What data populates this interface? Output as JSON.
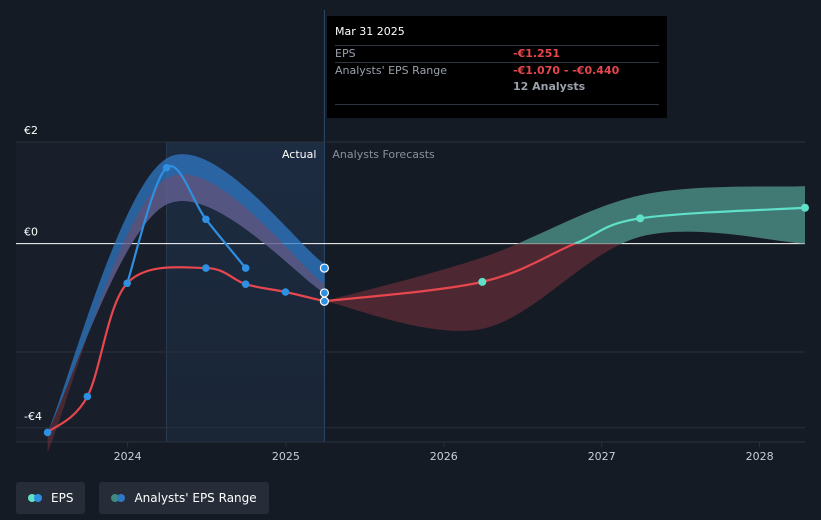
{
  "chart_data": {
    "type": "line",
    "currency_ticks": [
      {
        "label": "€2",
        "value": 2
      },
      {
        "label": "€0",
        "value": 0
      },
      {
        "label": "-€4",
        "value": -4
      }
    ],
    "ylim": [
      -4.2,
      2.1
    ],
    "x_ticks": [
      "2024",
      "2025",
      "2026",
      "2027",
      "2028"
    ],
    "xlim": [
      "2023-07-01",
      "2028-04-15"
    ],
    "region_labels": {
      "actual": "Actual",
      "forecast": "Analysts Forecasts"
    },
    "actual_end": "2025-03-31",
    "eps_actual": {
      "name": "EPS",
      "points": [
        {
          "x": "2023-06-30",
          "y": -4.1
        },
        {
          "x": "2023-09-30",
          "y": -3.32
        },
        {
          "x": "2023-12-31",
          "y": -0.86
        },
        {
          "x": "2024-06-30",
          "y": -0.53
        },
        {
          "x": "2024-09-30",
          "y": -0.88
        },
        {
          "x": "2024-12-31",
          "y": -1.05
        },
        {
          "x": "2025-03-31",
          "y": -1.251
        }
      ]
    },
    "eps_quarterly": {
      "points": [
        {
          "x": "2024-03-31",
          "y": 1.65
        },
        {
          "x": "2024-06-30",
          "y": 0.53
        },
        {
          "x": "2024-09-30",
          "y": -0.53
        },
        {
          "x": "2025-03-31",
          "y": -0.53
        },
        {
          "x": "2025-03-31",
          "y": -1.07
        }
      ]
    },
    "eps_forecast": {
      "points": [
        {
          "x": "2025-03-31",
          "y": -1.251
        },
        {
          "x": "2026-03-31",
          "y": -0.83
        },
        {
          "x": "2026-10-31",
          "y": 0.0
        },
        {
          "x": "2027-03-31",
          "y": 0.55
        },
        {
          "x": "2028-04-15",
          "y": 0.78
        }
      ]
    },
    "range_actual": {
      "name": "Analysts' EPS Range",
      "points": [
        {
          "x": "2023-06-30",
          "low": -4.1,
          "high": -4.1
        },
        {
          "x": "2024-03-31",
          "low": 0.85,
          "high": 1.85
        },
        {
          "x": "2025-03-31",
          "low": -1.07,
          "high": -0.44
        }
      ]
    },
    "range_forecast": {
      "points": [
        {
          "x": "2025-03-31",
          "low": -1.251,
          "high": -1.251
        },
        {
          "x": "2026-03-31",
          "low": -1.85,
          "high": -0.3
        },
        {
          "x": "2027-03-31",
          "low": 0.15,
          "high": 1.05
        },
        {
          "x": "2028-04-15",
          "low": 0.0,
          "high": 1.25
        }
      ]
    },
    "colors": {
      "eps_negative": "#e6474e",
      "eps_positive_forecast": "#5fe0c8",
      "eps_past_blue": "#2f8fe0",
      "range_blue": "#2f78c4",
      "range_red": "#a33a45",
      "range_green": "#3f8a80"
    }
  },
  "tooltip": {
    "date": "Mar 31 2025",
    "eps_label": "EPS",
    "eps_value": "-€1.251",
    "range_label": "Analysts' EPS Range",
    "range_value": "-€1.070 - -€0.440",
    "analysts": "12 Analysts"
  },
  "legend": [
    {
      "label": "EPS",
      "icon": "eps-dots-icon",
      "colors": [
        "#2f8fe0",
        "#5fe0c8"
      ]
    },
    {
      "label": "Analysts' EPS Range",
      "icon": "range-dots-icon",
      "colors": [
        "#2f78c4",
        "#3f8a80"
      ]
    }
  ]
}
